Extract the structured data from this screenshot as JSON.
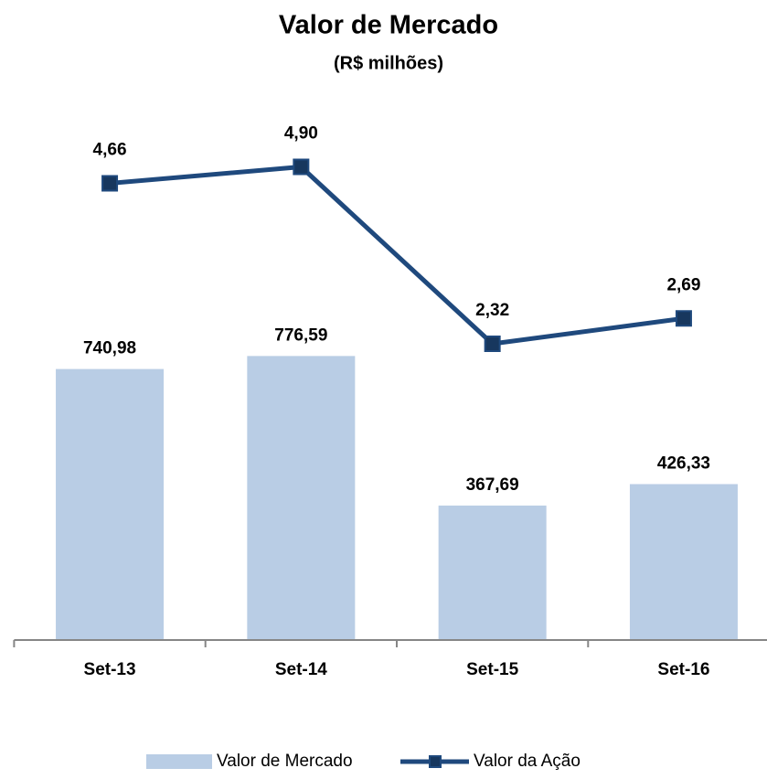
{
  "chart_data": {
    "type": "bar-line",
    "title": "Valor de Mercado",
    "subtitle": "(R$ milhões)",
    "categories": [
      "Set-13",
      "Set-14",
      "Set-15",
      "Set-16"
    ],
    "series": [
      {
        "name": "Valor de Mercado",
        "type": "bar",
        "color": "#b9cde5",
        "values": [
          740.98,
          776.59,
          367.69,
          426.33
        ],
        "value_labels": [
          "740,98",
          "776,59",
          "367,69",
          "426,33"
        ]
      },
      {
        "name": "Valor da Ação",
        "type": "line",
        "axis": "y2",
        "color": "#1f497d",
        "values": [
          4.66,
          4.9,
          2.32,
          2.69
        ],
        "value_labels": [
          "4,66",
          "4,90",
          "2,32",
          "2,69"
        ]
      }
    ],
    "ylim": [
      0,
      1500
    ],
    "y2lim": [
      -2,
      6
    ],
    "legend": "bottom"
  }
}
